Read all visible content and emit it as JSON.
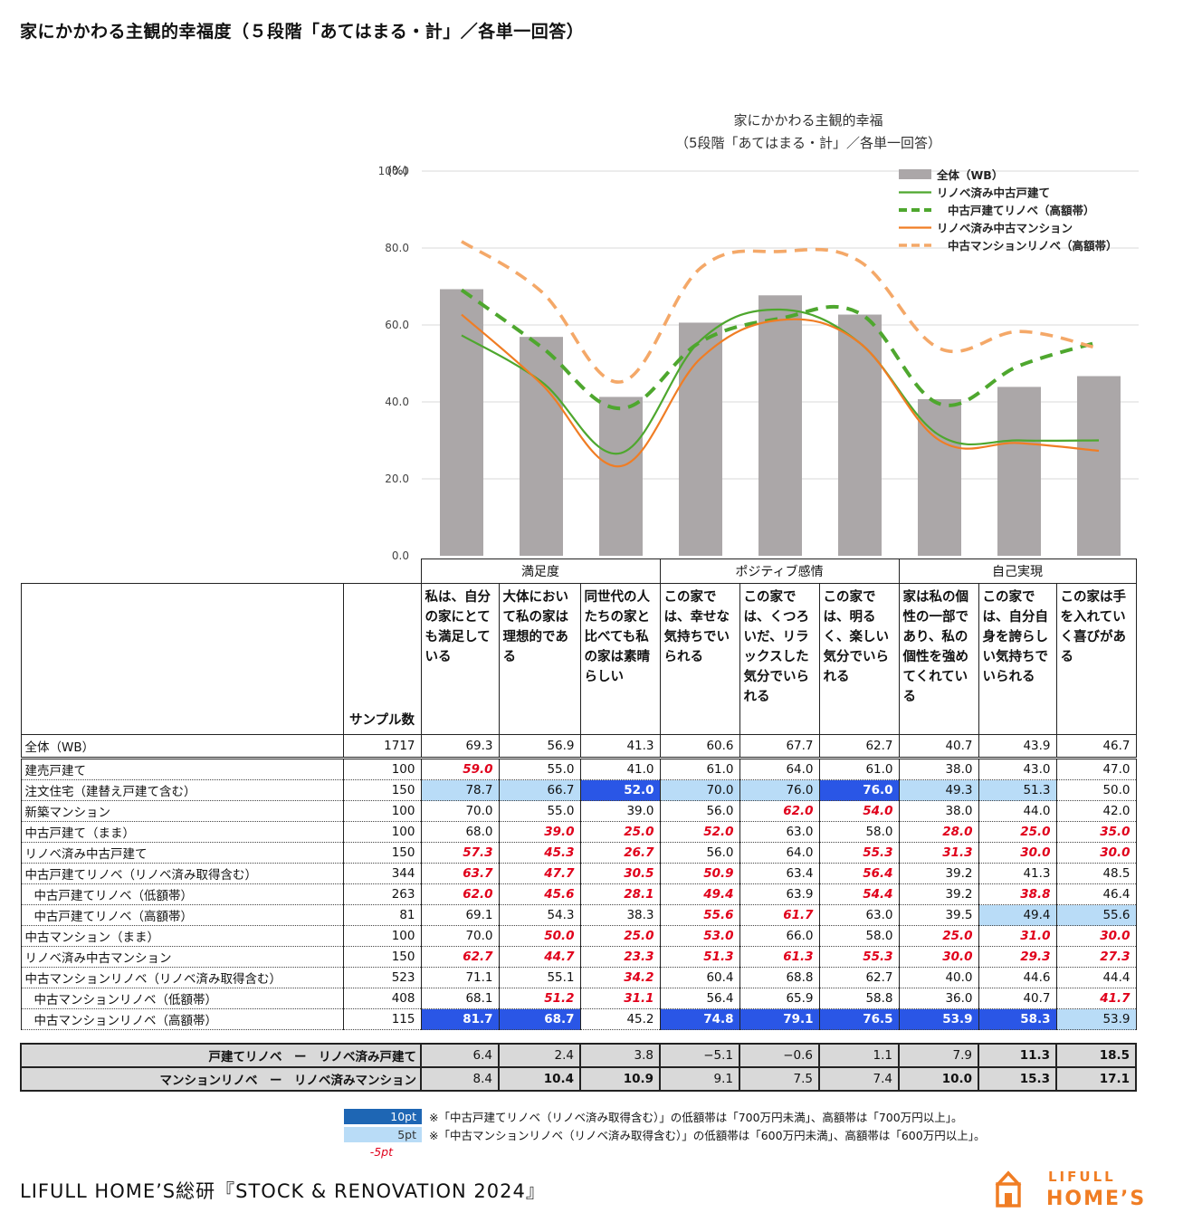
{
  "page_title": "家にかかわる主観的幸福度（５段階「あてはまる・計」／各単一回答）",
  "colors": {
    "bar": "#aba7a8",
    "green": "#4ea72e",
    "orange": "#f07d24",
    "orange_light": "#f4a868",
    "highlight_10pt": "#2a56e6",
    "highlight_5pt": "#b9dcf7",
    "low_text": "#e0001b"
  },
  "chart_data": {
    "type": "bar+line",
    "title": "家にかかわる主観的幸福",
    "subtitle": "（5段階「あてはまる・計」／各単一回答）",
    "ylabel": "(%)",
    "ylim": [
      0,
      100
    ],
    "yticks": [
      "0.0",
      "20.0",
      "40.0",
      "60.0",
      "80.0",
      "100.0"
    ],
    "categories": [
      "私は、自分の家にとても満足している",
      "大体において私の家は理想的である",
      "同世代の人たちの家と比べても私の家は素晴らしい",
      "この家では、幸せな気持ちでいられる",
      "この家では、くつろいだ、リラックスした気分でいられる",
      "この家では、明るく、楽しい気分でいられる",
      "家は私の個性の一部であり、私の個性を強めてくれている",
      "この家では、自分自身を誇らしい気持ちでいられる",
      "この家は手を入れていく喜びがある"
    ],
    "series": [
      {
        "name": "全体（WB）",
        "kind": "bar",
        "values": [
          69.3,
          56.9,
          41.3,
          60.6,
          67.7,
          62.7,
          40.7,
          43.9,
          46.7
        ]
      },
      {
        "name": "リノベ済み中古戸建て",
        "kind": "line",
        "style": "solid-green",
        "values": [
          57.3,
          45.3,
          26.7,
          56.0,
          64.0,
          55.3,
          31.3,
          30.0,
          30.0
        ]
      },
      {
        "name": "中古戸建てリノベ（高額帯）",
        "kind": "line",
        "style": "dashed-green",
        "values": [
          69.1,
          54.3,
          38.3,
          55.6,
          61.7,
          63.0,
          39.5,
          49.4,
          55.6
        ]
      },
      {
        "name": "リノベ済み中古マンション",
        "kind": "line",
        "style": "solid-orange",
        "values": [
          62.7,
          44.7,
          23.3,
          51.3,
          61.3,
          55.3,
          30.0,
          29.3,
          27.3
        ]
      },
      {
        "name": "中古マンションリノベ（高額帯）",
        "kind": "line",
        "style": "dashed-orange",
        "values": [
          81.7,
          68.7,
          45.2,
          74.8,
          79.1,
          76.5,
          53.9,
          58.3,
          53.9
        ]
      }
    ],
    "legend_position": "top-right"
  },
  "table": {
    "groups": [
      "満足度",
      "ポジティブ感情",
      "自己実現"
    ],
    "sample_header": "サンプル数",
    "columns": [
      "私は、自分の家にとても満足している",
      "大体において私の家は理想的である",
      "同世代の人たちの家と比べても私の家は素晴らしい",
      "この家では、幸せな気持ちでいられる",
      "この家では、くつろいだ、リラックスした気分でいられる",
      "この家では、明るく、楽しい気分でいられる",
      "家は私の個性の一部であり、私の個性を強めてくれている",
      "この家では、自分自身を誇らしい気持ちでいられる",
      "この家は手を入れていく喜びがある"
    ],
    "total_row": {
      "label": "全体（WB）",
      "n": "1717",
      "values": [
        "69.3",
        "56.9",
        "41.3",
        "60.6",
        "67.7",
        "62.7",
        "40.7",
        "43.9",
        "46.7"
      ]
    },
    "rows": [
      {
        "label": "建売戸建て",
        "n": "100",
        "values": [
          "59.0",
          "55.0",
          "41.0",
          "61.0",
          "64.0",
          "61.0",
          "38.0",
          "43.0",
          "47.0"
        ],
        "marks": [
          "low",
          "",
          "",
          "",
          "",
          "",
          "",
          "",
          ""
        ]
      },
      {
        "label": "注文住宅（建替え戸建て含む）",
        "n": "150",
        "values": [
          "78.7",
          "66.7",
          "52.0",
          "70.0",
          "76.0",
          "76.0",
          "49.3",
          "51.3",
          "50.0"
        ],
        "marks": [
          "hi5",
          "hi5",
          "hi10",
          "hi5",
          "hi5",
          "hi10",
          "hi5",
          "hi5",
          ""
        ]
      },
      {
        "label": "新築マンション",
        "n": "100",
        "values": [
          "70.0",
          "55.0",
          "39.0",
          "56.0",
          "62.0",
          "54.0",
          "38.0",
          "44.0",
          "42.0"
        ],
        "marks": [
          "",
          "",
          "",
          "",
          "low",
          "low",
          "",
          "",
          ""
        ]
      },
      {
        "label": "中古戸建て（まま）",
        "n": "100",
        "values": [
          "68.0",
          "39.0",
          "25.0",
          "52.0",
          "63.0",
          "58.0",
          "28.0",
          "25.0",
          "35.0"
        ],
        "marks": [
          "",
          "low",
          "low",
          "low",
          "",
          "",
          "low",
          "low",
          "low"
        ]
      },
      {
        "label": "リノベ済み中古戸建て",
        "n": "150",
        "values": [
          "57.3",
          "45.3",
          "26.7",
          "56.0",
          "64.0",
          "55.3",
          "31.3",
          "30.0",
          "30.0"
        ],
        "marks": [
          "low",
          "low",
          "low",
          "",
          "",
          "low",
          "low",
          "low",
          "low"
        ]
      },
      {
        "label": "中古戸建てリノベ（リノベ済み取得含む）",
        "n": "344",
        "values": [
          "63.7",
          "47.7",
          "30.5",
          "50.9",
          "63.4",
          "56.4",
          "39.2",
          "41.3",
          "48.5"
        ],
        "marks": [
          "low",
          "low",
          "low",
          "low",
          "",
          "low",
          "",
          "",
          ""
        ]
      },
      {
        "label": "中古戸建てリノベ（低額帯）",
        "n": "263",
        "values": [
          "62.0",
          "45.6",
          "28.1",
          "49.4",
          "63.9",
          "54.4",
          "39.2",
          "38.8",
          "46.4"
        ],
        "marks": [
          "low",
          "low",
          "low",
          "low",
          "",
          "low",
          "",
          "low",
          ""
        ],
        "sub": true
      },
      {
        "label": "中古戸建てリノベ（高額帯）",
        "n": "81",
        "values": [
          "69.1",
          "54.3",
          "38.3",
          "55.6",
          "61.7",
          "63.0",
          "39.5",
          "49.4",
          "55.6"
        ],
        "marks": [
          "",
          "",
          "",
          "low",
          "low",
          "",
          "",
          "hi5",
          "hi5"
        ],
        "sub": true
      },
      {
        "label": "中古マンション（まま）",
        "n": "100",
        "values": [
          "70.0",
          "50.0",
          "25.0",
          "53.0",
          "66.0",
          "58.0",
          "25.0",
          "31.0",
          "30.0"
        ],
        "marks": [
          "",
          "low",
          "low",
          "low",
          "",
          "",
          "low",
          "low",
          "low"
        ]
      },
      {
        "label": "リノベ済み中古マンション",
        "n": "150",
        "values": [
          "62.7",
          "44.7",
          "23.3",
          "51.3",
          "61.3",
          "55.3",
          "30.0",
          "29.3",
          "27.3"
        ],
        "marks": [
          "low",
          "low",
          "low",
          "low",
          "low",
          "low",
          "low",
          "low",
          "low"
        ]
      },
      {
        "label": "中古マンションリノベ（リノベ済み取得含む）",
        "n": "523",
        "values": [
          "71.1",
          "55.1",
          "34.2",
          "60.4",
          "68.8",
          "62.7",
          "40.0",
          "44.6",
          "44.4"
        ],
        "marks": [
          "",
          "",
          "low",
          "",
          "",
          "",
          "",
          "",
          ""
        ]
      },
      {
        "label": "中古マンションリノベ（低額帯）",
        "n": "408",
        "values": [
          "68.1",
          "51.2",
          "31.1",
          "56.4",
          "65.9",
          "58.8",
          "36.0",
          "40.7",
          "41.7"
        ],
        "marks": [
          "",
          "low",
          "low",
          "",
          "",
          "",
          "",
          "",
          "low"
        ],
        "sub": true
      },
      {
        "label": "中古マンションリノベ（高額帯）",
        "n": "115",
        "values": [
          "81.7",
          "68.7",
          "45.2",
          "74.8",
          "79.1",
          "76.5",
          "53.9",
          "58.3",
          "53.9"
        ],
        "marks": [
          "hi10",
          "hi10",
          "",
          "hi10",
          "hi10",
          "hi10",
          "hi10",
          "hi10",
          "hi5"
        ],
        "sub": true
      }
    ],
    "diff_rows": [
      {
        "label": "戸建てリノベ　ー　リノベ済み戸建て",
        "values": [
          "6.4",
          "2.4",
          "3.8",
          "−5.1",
          "−0.6",
          "1.1",
          "7.9",
          "11.3",
          "18.5"
        ],
        "bold": [
          false,
          false,
          false,
          false,
          false,
          false,
          false,
          true,
          true
        ]
      },
      {
        "label": "マンションリノベ　ー　リノベ済みマンション",
        "values": [
          "8.4",
          "10.4",
          "10.9",
          "9.1",
          "7.5",
          "7.4",
          "10.0",
          "15.3",
          "17.1"
        ],
        "bold": [
          false,
          true,
          true,
          false,
          false,
          false,
          true,
          true,
          true
        ]
      }
    ]
  },
  "legend_notes": {
    "pt10": "10pt",
    "pt5": "5pt",
    "minus5": "-5pt",
    "note1": "※「中古戸建てリノベ（リノベ済み取得含む）」の低額帯は「700万円未満」、高額帯は「700万円以上」。",
    "note2": "※「中古マンションリノベ（リノベ済み取得含む）」の低額帯は「600万円未満」、高額帯は「600万円以上」。"
  },
  "footer": {
    "source": "LIFULL HOME’S総研『STOCK & RENOVATION 2024』",
    "logo_top": "LIFULL",
    "logo_bottom": "HOME’S"
  }
}
